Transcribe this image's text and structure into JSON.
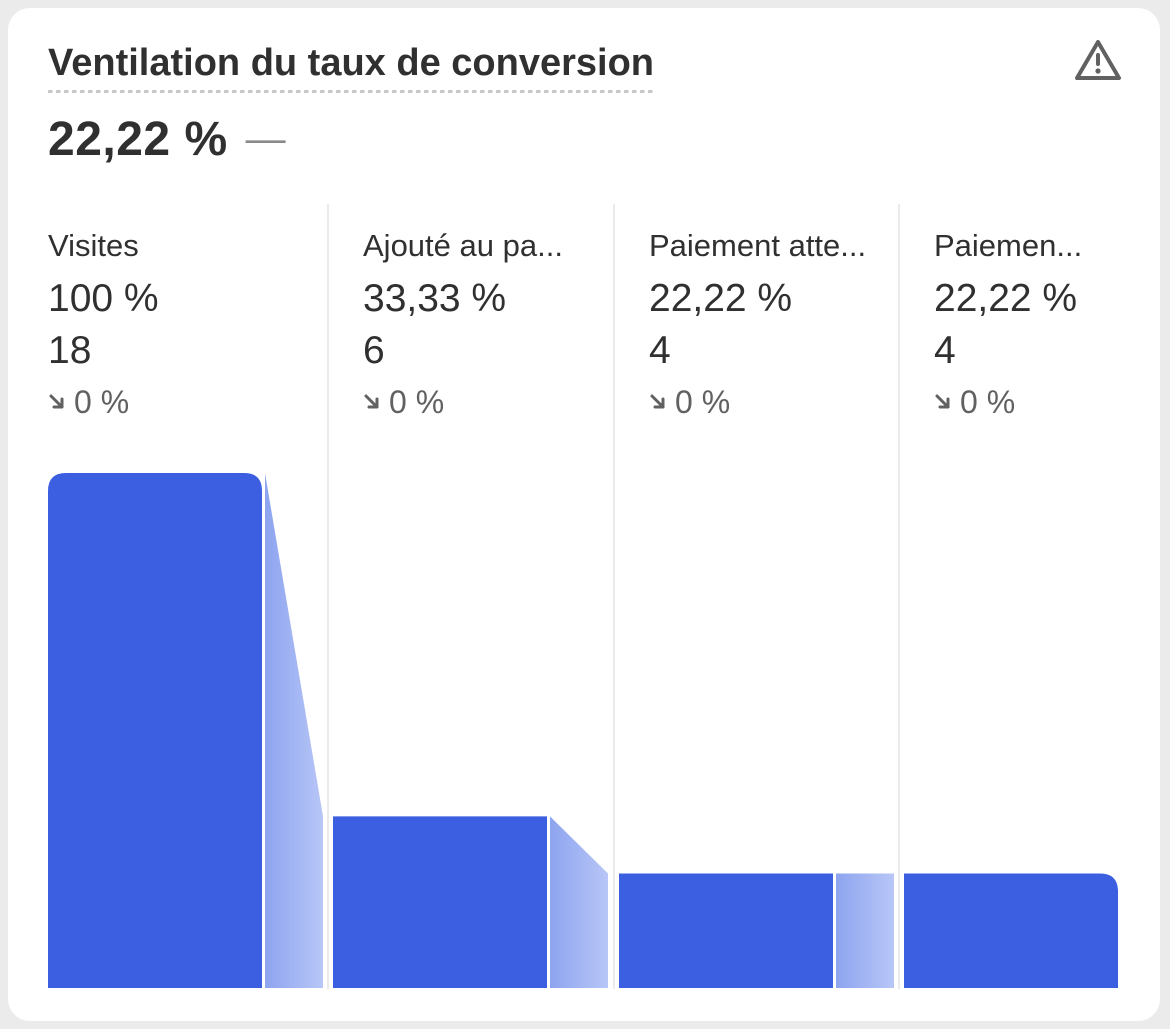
{
  "card": {
    "title": "Ventilation du taux de conversion",
    "metric_value": "22,22 %",
    "metric_change": "—",
    "warning_icon": "warning-triangle-icon"
  },
  "columns": [
    {
      "label": "Visites",
      "pct": "100 %",
      "count": "18",
      "change": "0 %"
    },
    {
      "label": "Ajouté au pa...",
      "pct": "33,33 %",
      "count": "6",
      "change": "0 %"
    },
    {
      "label": "Paiement atte...",
      "pct": "22,22 %",
      "count": "4",
      "change": "0 %"
    },
    {
      "label": "Paiemen...",
      "pct": "22,22 %",
      "count": "4",
      "change": "0 %"
    }
  ],
  "colors": {
    "bar": "#3b5fe0",
    "connector_light": "#b8c6f7",
    "connector_dark": "#8da4ef",
    "text": "#303030",
    "muted": "#616161"
  },
  "chart_data": {
    "type": "bar",
    "categories": [
      "Visites",
      "Ajouté au pa...",
      "Paiement atte...",
      "Paiemen..."
    ],
    "values": [
      18,
      6,
      4,
      4
    ],
    "percentages": [
      100,
      33.33,
      22.22,
      22.22
    ],
    "ylim": [
      0,
      18
    ]
  }
}
